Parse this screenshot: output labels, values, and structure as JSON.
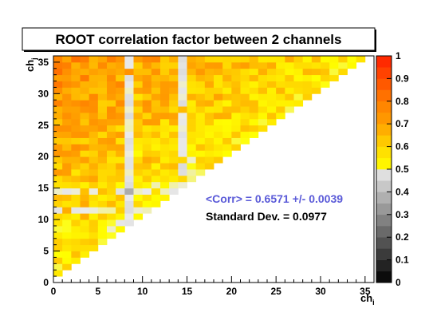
{
  "chart_data": {
    "type": "heatmap",
    "title": "ROOT correlation factor between 2 channels",
    "xlabel": "ch",
    "xlabel_sub": "i",
    "ylabel": "ch",
    "ylabel_sub": "j",
    "x_range": [
      0,
      36
    ],
    "y_range": [
      0,
      36
    ],
    "x_ticks": [
      0,
      5,
      10,
      15,
      20,
      25,
      30,
      35
    ],
    "y_ticks": [
      0,
      5,
      10,
      15,
      20,
      25,
      30,
      35
    ],
    "z_range": [
      0,
      1
    ],
    "colorbar_ticks": [
      "0",
      "0.1",
      "0.2",
      "0.3",
      "0.4",
      "0.5",
      "0.6",
      "0.7",
      "0.8",
      "0.9",
      "1"
    ],
    "mean_label": "<Corr> = 0.6571 +/- 0.0039",
    "stddev_label": "Standard Dev. = 0.0977",
    "colors": {
      "mean_text": "#5a5ad8",
      "stddev_text": "#000000",
      "palette_low": "#000000",
      "palette_mid": "#ffff00",
      "palette_high": "#ff2a00"
    },
    "filled_region": "lower triangle (ch_j > ch_i), values 0.45-0.80",
    "low_correlation_channels": [
      8,
      9,
      14,
      15
    ],
    "low_correlation_rows": [
      14,
      11
    ]
  }
}
